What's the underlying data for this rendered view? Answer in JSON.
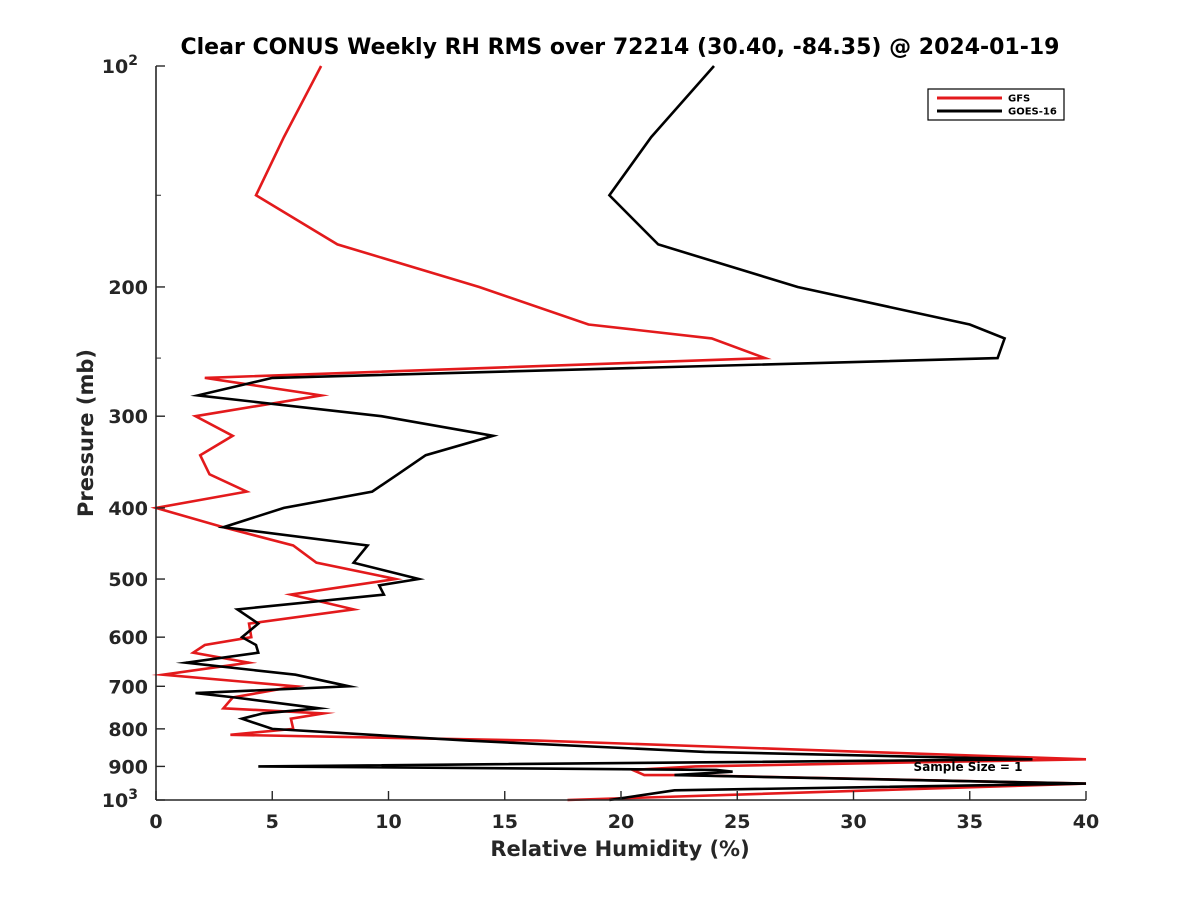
{
  "chart_data": {
    "type": "line",
    "title": "Clear CONUS Weekly RH RMS over 72214 (30.40, -84.35) @ 2024-01-19",
    "xlabel": "Relative Humidity (%)",
    "ylabel": "Pressure (mb)",
    "xlim": [
      0,
      40
    ],
    "ylim": [
      100,
      1000
    ],
    "yscale": "log",
    "y_reversed": true,
    "grid": false,
    "legend_position": "top-right",
    "annotation": "Sample Size = 1",
    "x_ticks": [
      "0",
      "5",
      "10",
      "15",
      "20",
      "25",
      "30",
      "35",
      "40"
    ],
    "y_ticks": [
      {
        "value": 100,
        "label": "10",
        "sup": "2"
      },
      {
        "value": 200,
        "label": "200",
        "sup": ""
      },
      {
        "value": 300,
        "label": "300",
        "sup": ""
      },
      {
        "value": 400,
        "label": "400",
        "sup": ""
      },
      {
        "value": 500,
        "label": "500",
        "sup": ""
      },
      {
        "value": 600,
        "label": "600",
        "sup": ""
      },
      {
        "value": 700,
        "label": "700",
        "sup": ""
      },
      {
        "value": 800,
        "label": "800",
        "sup": ""
      },
      {
        "value": 900,
        "label": "900",
        "sup": ""
      },
      {
        "value": 1000,
        "label": "10",
        "sup": "3"
      }
    ],
    "series": [
      {
        "name": "GFS",
        "color": "#e31a1c",
        "points": [
          [
            7.1,
            100
          ],
          [
            5.5,
            125
          ],
          [
            4.3,
            150
          ],
          [
            7.8,
            175
          ],
          [
            13.9,
            200
          ],
          [
            18.6,
            225
          ],
          [
            23.9,
            235
          ],
          [
            26.2,
            250
          ],
          [
            2.1,
            266
          ],
          [
            7.1,
            281
          ],
          [
            1.7,
            300
          ],
          [
            3.3,
            319
          ],
          [
            1.9,
            339
          ],
          [
            2.3,
            360
          ],
          [
            3.9,
            380
          ],
          [
            0,
            400
          ],
          [
            2.9,
            425
          ],
          [
            5.9,
            450
          ],
          [
            6.9,
            475
          ],
          [
            10.3,
            500
          ],
          [
            5.8,
            525
          ],
          [
            8.5,
            550
          ],
          [
            4.0,
            575
          ],
          [
            4.1,
            600
          ],
          [
            2.1,
            615
          ],
          [
            1.6,
            630
          ],
          [
            4.0,
            650
          ],
          [
            0.3,
            675
          ],
          [
            6.0,
            700
          ],
          [
            3.3,
            725
          ],
          [
            2.9,
            750
          ],
          [
            7.2,
            762
          ],
          [
            5.8,
            775
          ],
          [
            5.9,
            800
          ],
          [
            3.2,
            815
          ],
          [
            16.4,
            830
          ],
          [
            30.5,
            860
          ],
          [
            40,
            880
          ],
          [
            23.2,
            900
          ],
          [
            20.5,
            910
          ],
          [
            21.0,
            925
          ],
          [
            22.6,
            925
          ],
          [
            40,
            950
          ],
          [
            17.7,
            1000
          ]
        ]
      },
      {
        "name": "GOES-16",
        "color": "#000000",
        "points": [
          [
            24.0,
            100
          ],
          [
            21.3,
            125
          ],
          [
            19.5,
            150
          ],
          [
            21.6,
            175
          ],
          [
            27.6,
            200
          ],
          [
            35.0,
            225
          ],
          [
            36.5,
            235
          ],
          [
            36.2,
            250
          ],
          [
            5.0,
            266
          ],
          [
            1.8,
            281
          ],
          [
            9.7,
            300
          ],
          [
            14.5,
            319
          ],
          [
            11.6,
            339
          ],
          [
            10.4,
            360
          ],
          [
            9.3,
            380
          ],
          [
            5.5,
            400
          ],
          [
            2.9,
            425
          ],
          [
            9.1,
            450
          ],
          [
            8.5,
            475
          ],
          [
            11.3,
            500
          ],
          [
            9.6,
            510
          ],
          [
            9.8,
            525
          ],
          [
            3.5,
            550
          ],
          [
            4.4,
            575
          ],
          [
            3.7,
            600
          ],
          [
            4.3,
            615
          ],
          [
            4.4,
            630
          ],
          [
            1.3,
            650
          ],
          [
            6.0,
            675
          ],
          [
            8.3,
            700
          ],
          [
            1.7,
            715
          ],
          [
            3.4,
            725
          ],
          [
            7.0,
            750
          ],
          [
            4.6,
            762
          ],
          [
            3.7,
            775
          ],
          [
            5.0,
            800
          ],
          [
            13.4,
            830
          ],
          [
            23.6,
            860
          ],
          [
            37.7,
            880
          ],
          [
            4.4,
            900
          ],
          [
            24.1,
            910
          ],
          [
            24.8,
            915
          ],
          [
            22.3,
            925
          ],
          [
            40,
            950
          ],
          [
            22.3,
            970
          ],
          [
            19.5,
            1000
          ]
        ]
      }
    ]
  }
}
